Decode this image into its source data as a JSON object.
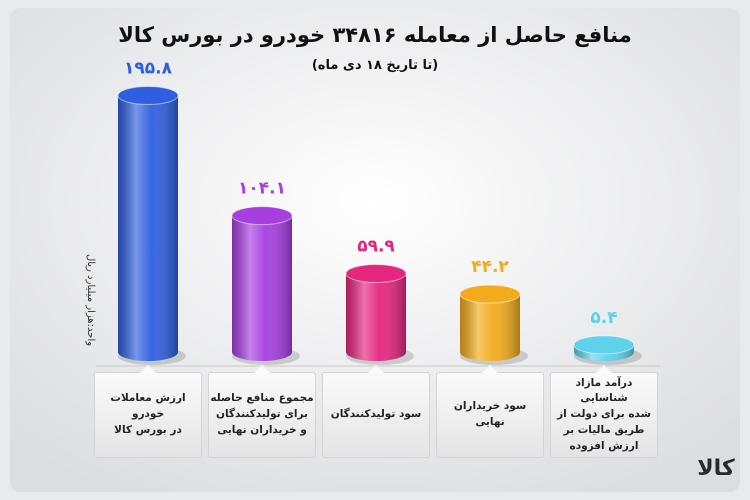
{
  "chart_data": {
    "type": "bar",
    "title": "منافع حاصل از معامله ۳۴۸۱۶ خودرو در بورس کالا",
    "subtitle": "(تا تاریخ ۱۸ دی ماه)",
    "y_label": "واحد:هزار میلیارد ریال",
    "categories": [
      "ارزش معاملات\nخودرو\nدر بورس کالا",
      "مجموع منافع حاصله\nبرای تولیدکنندگان\nو خریداران نهایی",
      "سود تولیدکنندگان",
      "سود خریداران\nنهایی",
      "درآمد مازاد شناسایی\nشده برای دولت از\nطریق مالیات بر\nارزش افزوده"
    ],
    "values": [
      195.8,
      104.1,
      59.9,
      44.2,
      5.4
    ],
    "value_labels": [
      "۱۹۵.۸",
      "۱۰۴.۱",
      "۵۹.۹",
      "۴۴.۲",
      "۵.۴"
    ],
    "colors": [
      "#2f5fe0",
      "#a63ee0",
      "#e4267f",
      "#f3ab1c",
      "#5dd2ea"
    ],
    "ylim": [
      0,
      200
    ],
    "logo": "کالا"
  }
}
